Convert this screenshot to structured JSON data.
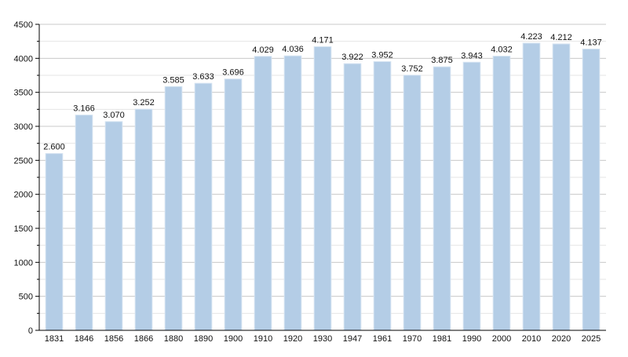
{
  "chart_data": {
    "type": "bar",
    "title": "",
    "xlabel": "",
    "ylabel": "",
    "categories": [
      "1831",
      "1846",
      "1856",
      "1866",
      "1880",
      "1890",
      "1900",
      "1910",
      "1920",
      "1930",
      "1947",
      "1961",
      "1970",
      "1981",
      "1990",
      "2000",
      "2010",
      "2020",
      "2025"
    ],
    "values": [
      2600,
      3166,
      3070,
      3252,
      3585,
      3633,
      3696,
      4029,
      4036,
      4171,
      3922,
      3952,
      3752,
      3875,
      3943,
      4032,
      4223,
      4212,
      4137
    ],
    "value_labels": [
      "2.600",
      "3.166",
      "3.070",
      "3.252",
      "3.585",
      "3.633",
      "3.696",
      "4.029",
      "4.036",
      "4.171",
      "3.922",
      "3.952",
      "3.752",
      "3.875",
      "3.943",
      "4.032",
      "4.223",
      "4.212",
      "4.137"
    ],
    "ylim": [
      0,
      4500
    ],
    "yticks": [
      0,
      500,
      1000,
      1500,
      2000,
      2500,
      3000,
      3500,
      4000,
      4500
    ],
    "ytick_labels": [
      "0",
      "500",
      "1000",
      "1500",
      "2000",
      "2500",
      "3000",
      "3500",
      "4000",
      "4500"
    ],
    "grid": true,
    "legend": "none",
    "colors": {
      "bar": "#b4cde6",
      "bar_edge": "#d6e4f2",
      "grid_major": "#c8c8c8",
      "grid_minor": "#e6e6e6",
      "axis": "#000000"
    }
  }
}
